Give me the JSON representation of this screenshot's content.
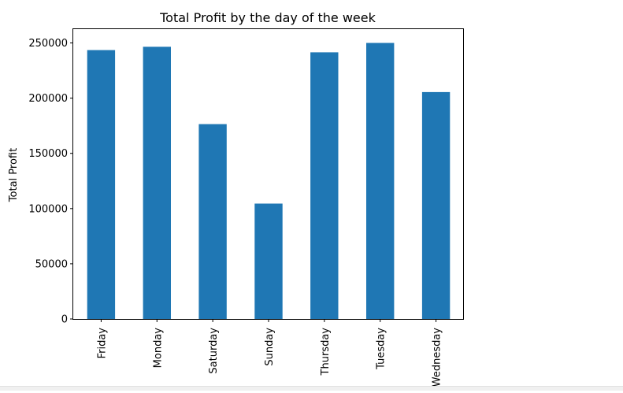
{
  "chart_data": {
    "type": "bar",
    "title": "Total Profit by the day of the week",
    "xlabel": "",
    "ylabel": "Total Profit",
    "categories": [
      "Friday",
      "Monday",
      "Saturday",
      "Sunday",
      "Thursday",
      "Tuesday",
      "Wednesday"
    ],
    "values": [
      243500,
      246500,
      176500,
      104500,
      241500,
      250000,
      205500
    ],
    "ylim": [
      0,
      262500
    ],
    "yticks": [
      0,
      50000,
      100000,
      150000,
      200000,
      250000
    ],
    "ytick_labels": [
      "0",
      "50000",
      "100000",
      "150000",
      "200000",
      "250000"
    ],
    "grid": false,
    "legend": "none",
    "bar_color": "#1f77b4"
  }
}
